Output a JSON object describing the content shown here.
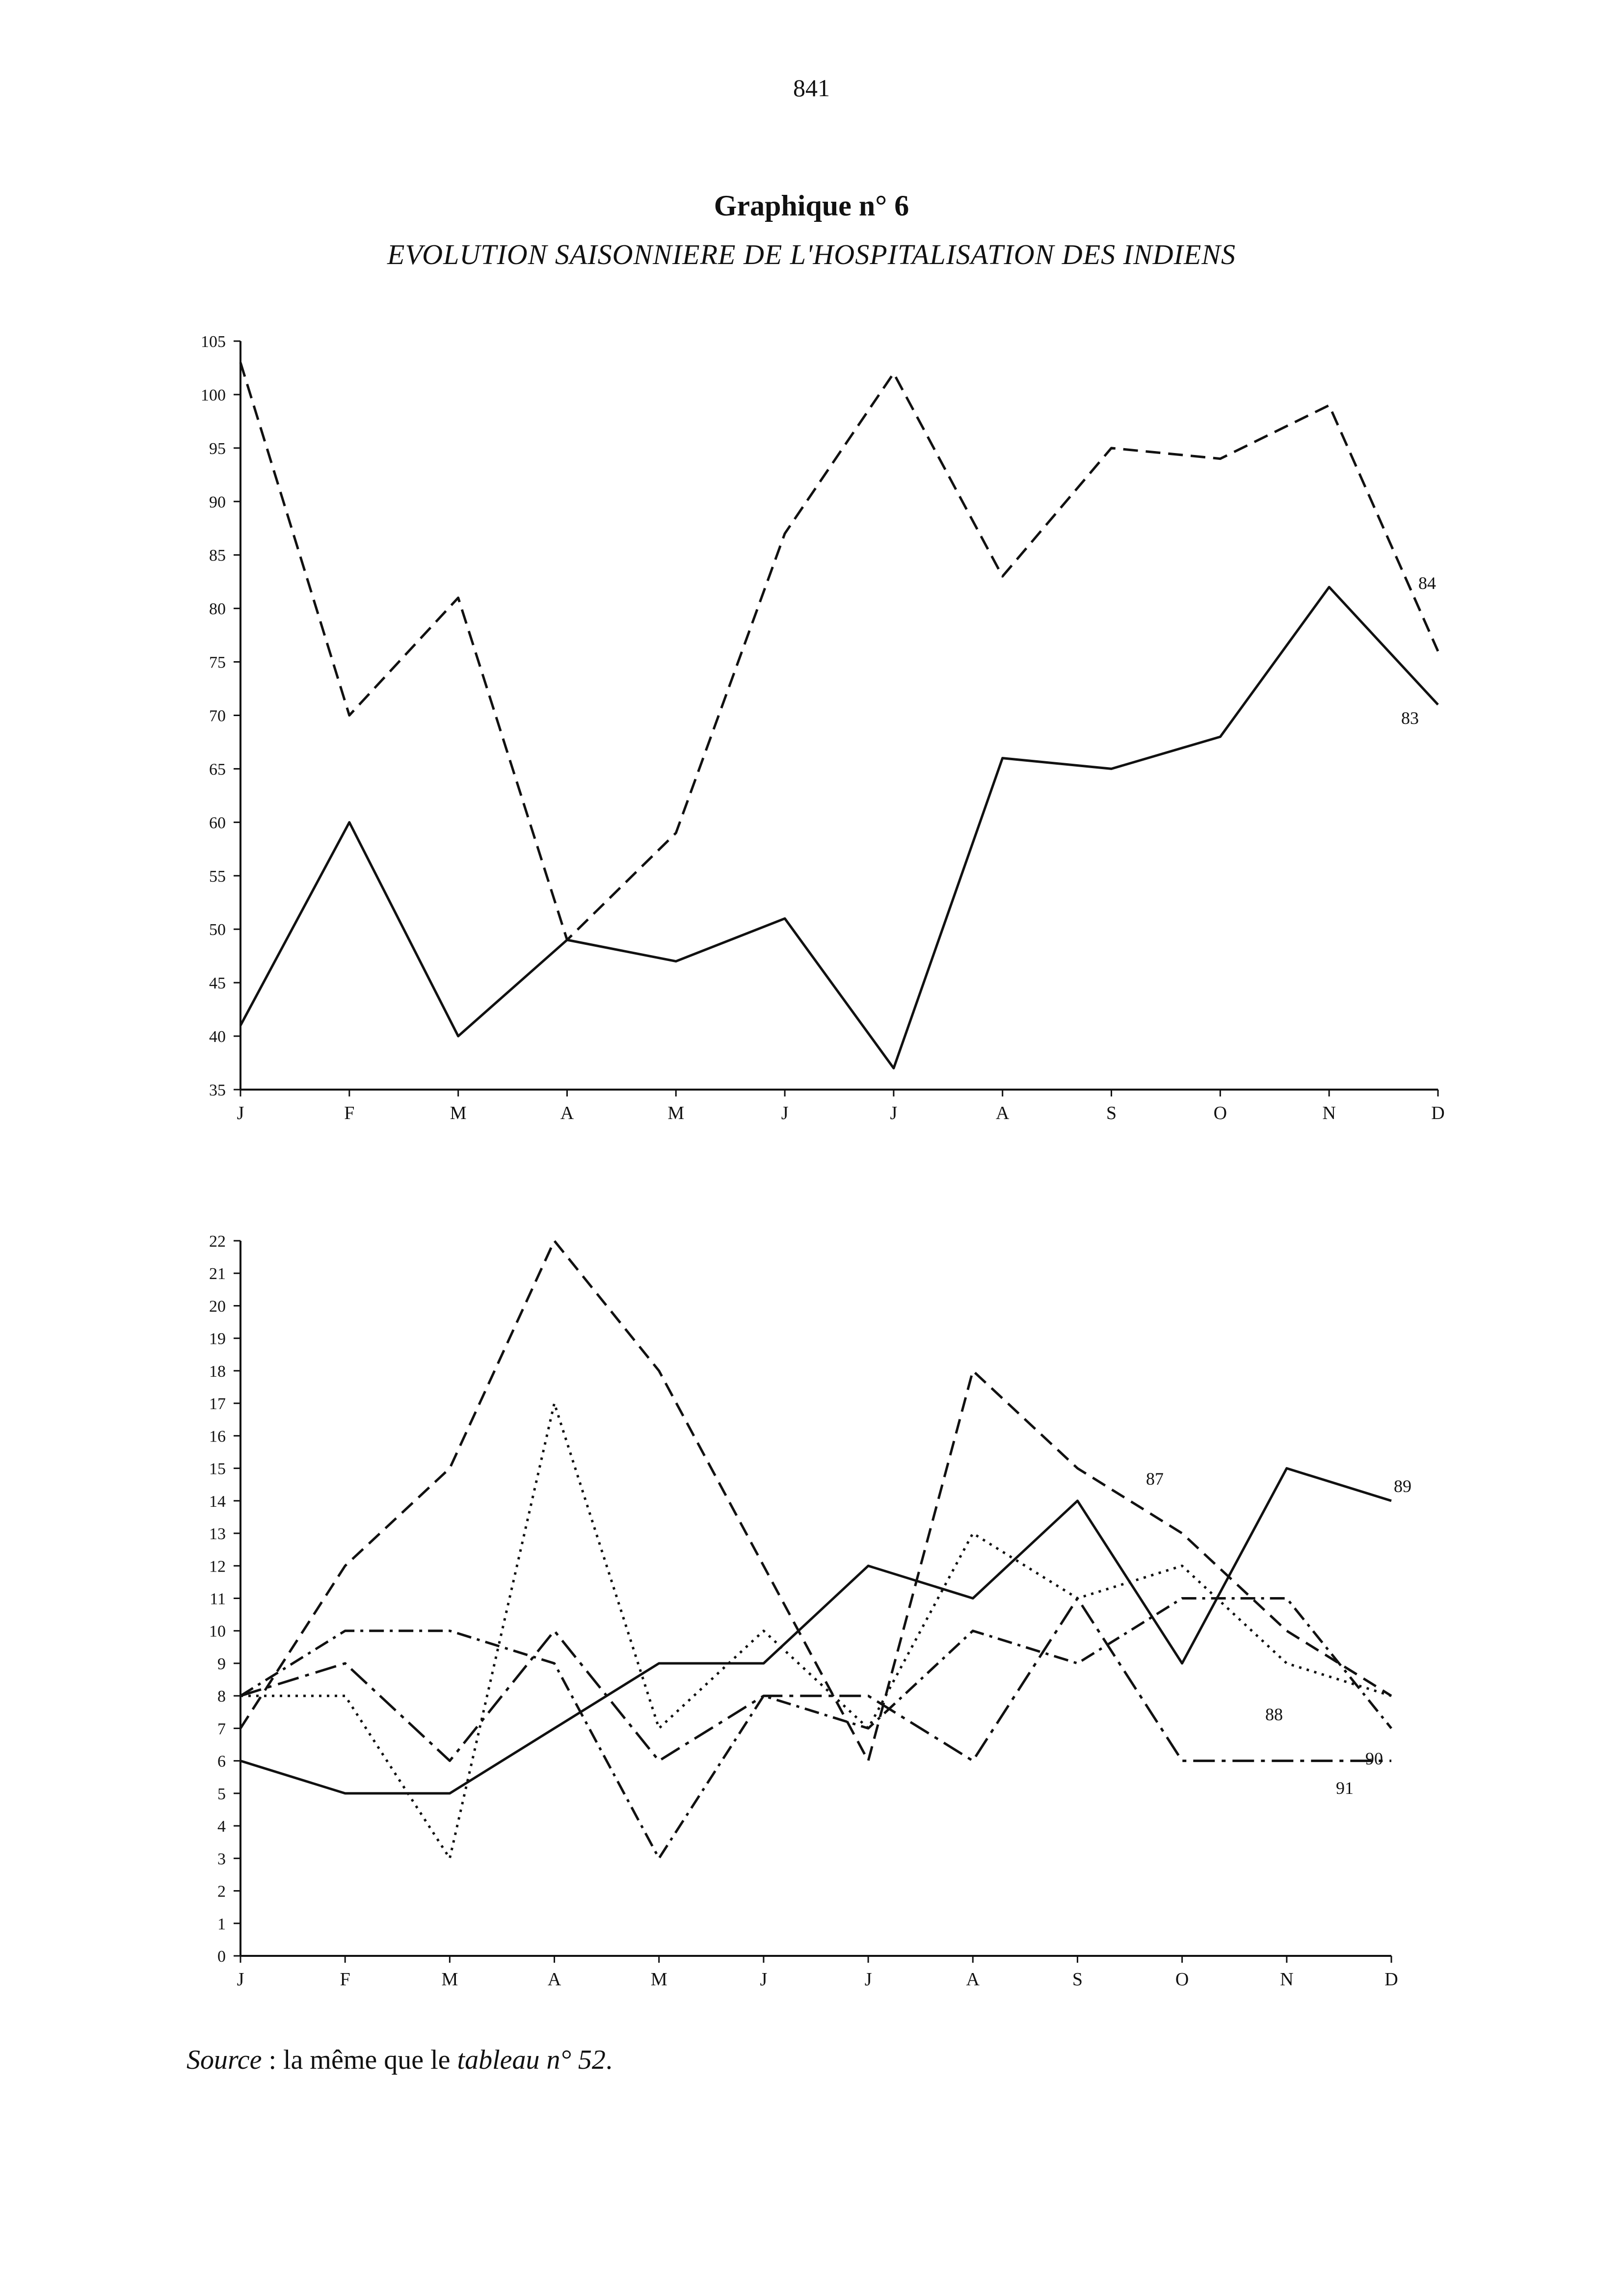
{
  "page_number": "841",
  "title": "Graphique n° 6",
  "subtitle": "EVOLUTION SAISONNIERE DE L'HOSPITALISATION DES INDIENS",
  "source": {
    "label": "Source",
    "separator": " : ",
    "text_a": "la même que le ",
    "ref_a": "tableau n° 52",
    "end": "."
  },
  "chart_data": [
    {
      "type": "line",
      "x": [
        "J",
        "F",
        "M",
        "A",
        "M",
        "J",
        "J",
        "A",
        "S",
        "O",
        "N",
        "D"
      ],
      "ylim": [
        35,
        105
      ],
      "yticks": [
        35,
        40,
        45,
        50,
        55,
        60,
        65,
        70,
        75,
        80,
        85,
        90,
        95,
        100,
        105
      ],
      "grid": false,
      "series": [
        {
          "name": "84",
          "style": "dashed",
          "values": [
            103,
            70,
            81,
            49,
            59,
            87,
            102,
            83,
            95,
            94,
            99,
            76
          ]
        },
        {
          "name": "83",
          "style": "solid",
          "values": [
            41,
            60,
            40,
            49,
            47,
            51,
            37,
            66,
            65,
            68,
            82,
            71
          ]
        }
      ]
    },
    {
      "type": "line",
      "x": [
        "J",
        "F",
        "M",
        "A",
        "M",
        "J",
        "J",
        "A",
        "S",
        "O",
        "N",
        "D"
      ],
      "ylim": [
        0,
        22
      ],
      "yticks": [
        0,
        1,
        2,
        3,
        4,
        5,
        6,
        7,
        8,
        9,
        10,
        11,
        12,
        13,
        14,
        15,
        16,
        17,
        18,
        19,
        20,
        21,
        22
      ],
      "grid": false,
      "series": [
        {
          "name": "87",
          "style": "dashed",
          "values": [
            7,
            12,
            15,
            22,
            18,
            12,
            6,
            18,
            15,
            13,
            10,
            8
          ]
        },
        {
          "name": "89",
          "style": "solid",
          "values": [
            6,
            5,
            5,
            7,
            9,
            9,
            12,
            11,
            14,
            9,
            15,
            14
          ]
        },
        {
          "name": "88",
          "style": "dotted",
          "values": [
            8,
            8,
            3,
            17,
            7,
            10,
            7,
            13,
            11,
            12,
            9,
            8
          ]
        },
        {
          "name": "90",
          "style": "dashdot",
          "values": [
            8,
            10,
            10,
            9,
            3,
            8,
            7,
            10,
            9,
            11,
            11,
            7
          ]
        },
        {
          "name": "91",
          "style": "dashdot-long",
          "values": [
            8,
            9,
            6,
            10,
            6,
            8,
            8,
            6,
            11,
            6,
            6,
            6
          ]
        }
      ]
    }
  ]
}
